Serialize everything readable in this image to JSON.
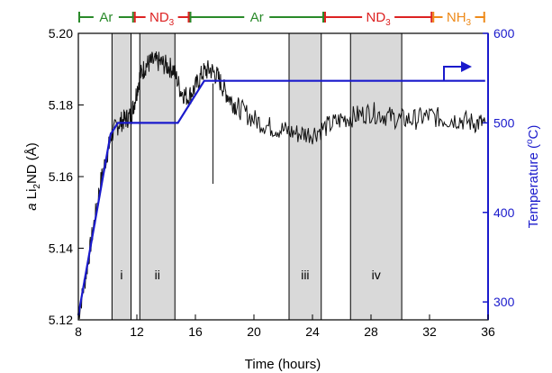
{
  "chart_data": {
    "type": "line",
    "xlabel": "Time (hours)",
    "ylabel_left": {
      "italic": "a",
      "main": " Li",
      "sub": "2",
      "tail": "ND (Å)"
    },
    "ylabel_right": {
      "main": "Temperature (",
      "sup": "o",
      "tail": "C)"
    },
    "xlim": [
      8,
      36
    ],
    "ylim_left": [
      5.12,
      5.2
    ],
    "ylim_right": [
      280,
      600
    ],
    "x_ticks": [
      "8",
      "12",
      "16",
      "20",
      "24",
      "28",
      "32",
      "36"
    ],
    "x_tick_values": [
      8,
      12,
      16,
      20,
      24,
      28,
      32,
      36
    ],
    "y_ticks_left": [
      "5.12",
      "5.14",
      "5.16",
      "5.18",
      "5.20"
    ],
    "y_tick_values_left": [
      5.12,
      5.14,
      5.16,
      5.18,
      5.2
    ],
    "y_ticks_right": [
      "300",
      "400",
      "500",
      "600"
    ],
    "y_tick_values_right": [
      300,
      400,
      500,
      600
    ],
    "shaded_regions": [
      {
        "label": "i",
        "x": [
          10.3,
          11.6
        ]
      },
      {
        "label": "ii",
        "x": [
          12.2,
          14.6
        ]
      },
      {
        "label": "iii",
        "x": [
          22.4,
          24.6
        ]
      },
      {
        "label": "iv",
        "x": [
          26.6,
          30.1
        ]
      }
    ],
    "gas_segments": [
      {
        "name": "Ar",
        "color": "#2a8a2a",
        "x": [
          8,
          11.8
        ]
      },
      {
        "name": "ND3",
        "base": "ND",
        "sub": "3",
        "color": "#dd2222",
        "x": [
          11.8,
          15.6
        ]
      },
      {
        "name": "Ar",
        "color": "#2a8a2a",
        "x": [
          15.6,
          24.8
        ]
      },
      {
        "name": "ND3",
        "base": "ND",
        "sub": "3",
        "color": "#dd2222",
        "x": [
          24.8,
          32.2
        ]
      },
      {
        "name": "NH3",
        "base": "NH",
        "sub": "3",
        "color": "#ee8a1a",
        "x": [
          32.2,
          35.8
        ]
      }
    ],
    "series": [
      {
        "axis": "left",
        "color": "#111111",
        "x": [
          8.0,
          8.5,
          9.0,
          9.5,
          10.0,
          10.3,
          10.8,
          11.2,
          11.6,
          11.9,
          12.2,
          12.6,
          13.0,
          13.5,
          14.0,
          14.5,
          15.0,
          15.5,
          16.0,
          16.5,
          17.0,
          17.5,
          18.0,
          18.5,
          19.0,
          20.0,
          21.0,
          22.0,
          23.0,
          24.0,
          25.0,
          26.0,
          27.0,
          28.0,
          29.0,
          30.0,
          31.0,
          32.0,
          33.0,
          34.0,
          35.0,
          35.8
        ],
        "y": [
          5.121,
          5.132,
          5.145,
          5.158,
          5.167,
          5.172,
          5.175,
          5.176,
          5.177,
          5.182,
          5.188,
          5.191,
          5.192,
          5.192,
          5.191,
          5.19,
          5.184,
          5.182,
          5.185,
          5.189,
          5.19,
          5.188,
          5.184,
          5.181,
          5.179,
          5.176,
          5.174,
          5.173,
          5.172,
          5.172,
          5.174,
          5.176,
          5.177,
          5.178,
          5.177,
          5.176,
          5.176,
          5.177,
          5.176,
          5.176,
          5.175,
          5.175
        ]
      },
      {
        "axis": "right",
        "color": "#1a1acc",
        "x": [
          8.0,
          10.2,
          10.7,
          14.8,
          16.6,
          35.8
        ],
        "y": [
          285,
          487,
          500,
          500,
          547,
          547
        ]
      }
    ]
  }
}
